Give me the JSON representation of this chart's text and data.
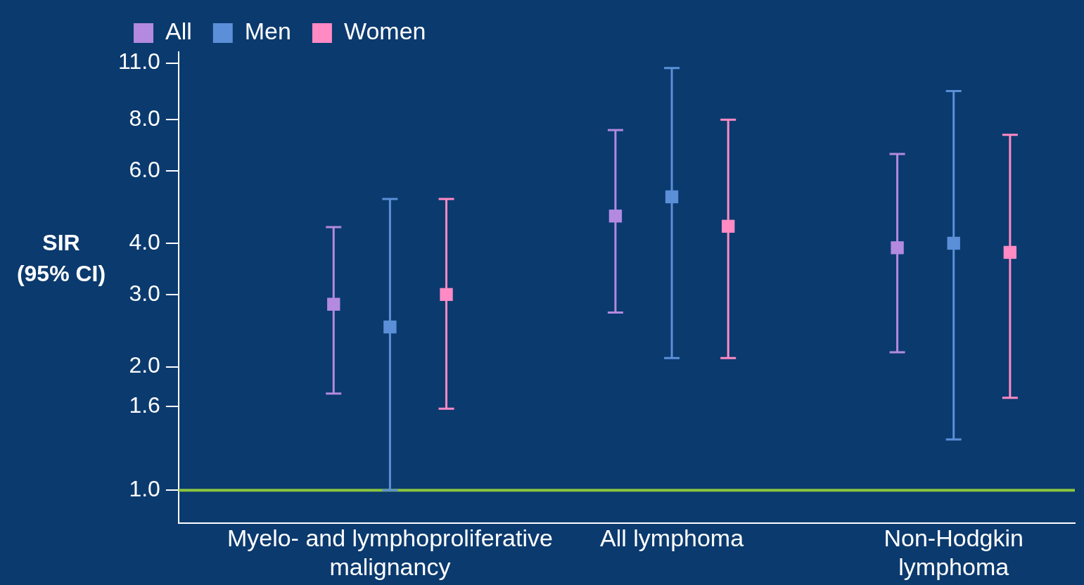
{
  "chart_data": {
    "type": "scatter",
    "ylabel": "SIR\n(95% CI)",
    "categories": [
      "Myelo- and lymphoproliferative\nmalignancy",
      "All lymphoma",
      "Non-Hodgkin\nlymphoma"
    ],
    "series": [
      {
        "name": "All",
        "color": "#b38ae0",
        "values": [
          2.84,
          4.66,
          3.9
        ],
        "errors": [
          [
            1.72,
            4.38
          ],
          [
            2.71,
            7.55
          ],
          [
            2.17,
            6.6
          ]
        ]
      },
      {
        "name": "Men",
        "color": "#5b8fd8",
        "values": [
          2.5,
          5.19,
          4.0
        ],
        "errors": [
          [
            1.0,
            5.13
          ],
          [
            2.1,
            10.7
          ],
          [
            1.33,
            9.4
          ]
        ]
      },
      {
        "name": "Women",
        "color": "#ff8ac4",
        "values": [
          3.0,
          4.4,
          3.8
        ],
        "errors": [
          [
            1.58,
            5.13
          ],
          [
            2.1,
            8.0
          ],
          [
            1.68,
            7.35
          ]
        ]
      }
    ],
    "log": "y",
    "ylim": [
      0.83,
      11.7
    ],
    "yticks": [
      {
        "value": 1,
        "label": "1.0"
      },
      {
        "value": 1.6,
        "label": "1.6"
      },
      {
        "value": 2,
        "label": "2.0"
      },
      {
        "value": 3,
        "label": "3.0"
      },
      {
        "value": 4,
        "label": "4.0"
      },
      {
        "value": 6,
        "label": "6.0"
      },
      {
        "value": 8,
        "label": "8.0"
      },
      {
        "value": 11,
        "label": "11.0"
      }
    ],
    "ref_lines": [
      {
        "axis": "y",
        "value": 1,
        "color": "#8cc63f"
      }
    ],
    "marker": "square",
    "legend": "top left"
  }
}
